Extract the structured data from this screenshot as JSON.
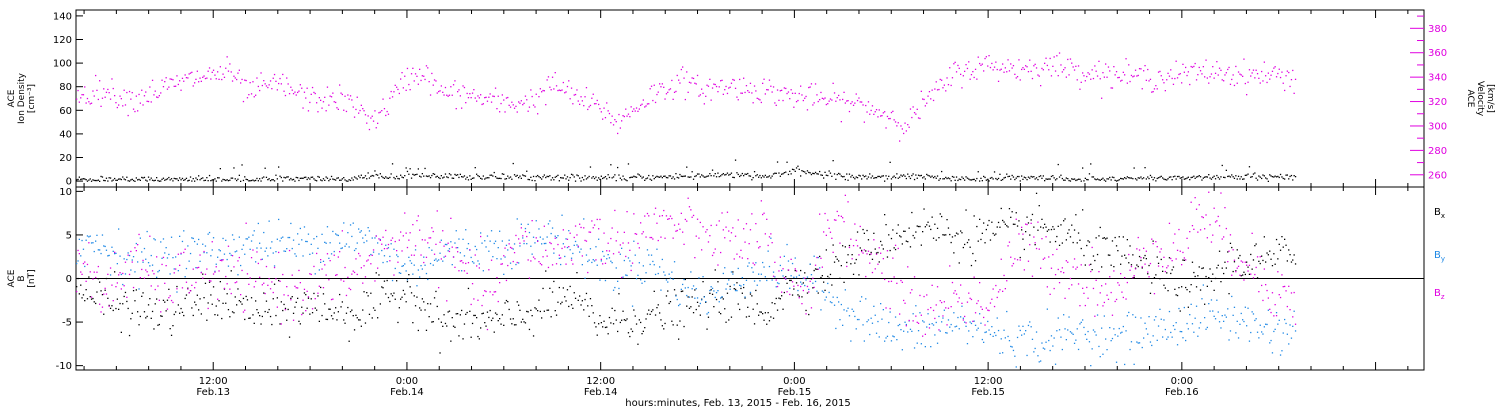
{
  "colors": {
    "density": "#000000",
    "velocity": "#e000e0",
    "bx": "#000000",
    "by": "#1e88e5",
    "bz": "#e000e0"
  },
  "time_axis": {
    "label": "hours:minutes, Feb. 13, 2015 - Feb. 16, 2015",
    "start_hours": 3.5,
    "end_hours": 87,
    "ticks": [
      {
        "hours": 12,
        "time": "12:00",
        "date": "Feb.13"
      },
      {
        "hours": 24,
        "time": "0:00",
        "date": "Feb.14"
      },
      {
        "hours": 36,
        "time": "12:00",
        "date": "Feb.14"
      },
      {
        "hours": 48,
        "time": "0:00",
        "date": "Feb.15"
      },
      {
        "hours": 60,
        "time": "12:00",
        "date": "Feb.15"
      },
      {
        "hours": 72,
        "time": "0:00",
        "date": "Feb.16"
      }
    ],
    "data_end_hours": 79
  },
  "chart_data": [
    {
      "type": "scatter",
      "panel": "top",
      "left_axis": {
        "label_lines": [
          "ACE",
          "Ion Density",
          "[cm⁻³]"
        ],
        "ylim": [
          -5,
          145
        ],
        "ticks": [
          0,
          20,
          40,
          60,
          80,
          100,
          120,
          140
        ]
      },
      "right_axis": {
        "label_lines": [
          "ACE",
          "Velocity",
          "[km/s]"
        ],
        "ylim": [
          250,
          395
        ],
        "ticks": [
          260,
          280,
          300,
          320,
          340,
          360,
          380
        ]
      },
      "series": [
        {
          "key": "density",
          "axis": "left",
          "baseline": [
            [
              3.5,
              2
            ],
            [
              10,
              1.5
            ],
            [
              20,
              2.5
            ],
            [
              24,
              6
            ],
            [
              26,
              4
            ],
            [
              32,
              4
            ],
            [
              36,
              3
            ],
            [
              40,
              4
            ],
            [
              44,
              6
            ],
            [
              46,
              4
            ],
            [
              48,
              9
            ],
            [
              50,
              6
            ],
            [
              52,
              4
            ],
            [
              56,
              5
            ],
            [
              58,
              2
            ],
            [
              62,
              3
            ],
            [
              66,
              2
            ],
            [
              70,
              3
            ],
            [
              74,
              4
            ],
            [
              79,
              4
            ]
          ],
          "spread": 3
        },
        {
          "key": "velocity",
          "axis": "right",
          "baseline": [
            [
              3.5,
              325
            ],
            [
              5,
              330
            ],
            [
              7,
              322
            ],
            [
              9,
              332
            ],
            [
              11,
              340
            ],
            [
              13,
              345
            ],
            [
              14,
              328
            ],
            [
              16,
              335
            ],
            [
              18,
              322
            ],
            [
              20,
              322
            ],
            [
              22,
              305
            ],
            [
              23,
              322
            ],
            [
              24,
              340
            ],
            [
              25,
              345
            ],
            [
              26,
              328
            ],
            [
              28,
              325
            ],
            [
              30,
              318
            ],
            [
              32,
              322
            ],
            [
              33,
              335
            ],
            [
              35,
              320
            ],
            [
              36,
              315
            ],
            [
              37,
              303
            ],
            [
              39,
              325
            ],
            [
              41,
              338
            ],
            [
              42,
              330
            ],
            [
              44,
              333
            ],
            [
              46,
              330
            ],
            [
              48,
              325
            ],
            [
              50,
              322
            ],
            [
              52,
              318
            ],
            [
              54,
              308
            ],
            [
              55,
              302
            ],
            [
              56,
              320
            ],
            [
              57,
              330
            ],
            [
              58,
              345
            ],
            [
              60,
              350
            ],
            [
              62,
              347
            ],
            [
              64,
              350
            ],
            [
              66,
              345
            ],
            [
              68,
              342
            ],
            [
              70,
              340
            ],
            [
              72,
              342
            ],
            [
              74,
              345
            ],
            [
              76,
              342
            ],
            [
              78,
              342
            ],
            [
              79,
              340
            ]
          ],
          "spread": 12
        }
      ]
    },
    {
      "type": "scatter",
      "panel": "bottom",
      "left_axis": {
        "label_lines": [
          "ACE",
          "B",
          "[nT]"
        ],
        "ylim": [
          -10.5,
          10.5
        ],
        "ticks": [
          -10,
          -5,
          0,
          5,
          10
        ]
      },
      "legend": [
        {
          "key": "bx",
          "label": "B",
          "sub": "x"
        },
        {
          "key": "by",
          "label": "B",
          "sub": "y"
        },
        {
          "key": "bz",
          "label": "B",
          "sub": "z"
        }
      ],
      "series": [
        {
          "key": "bx",
          "baseline": [
            [
              3.5,
              -1
            ],
            [
              6,
              -3
            ],
            [
              9,
              -4
            ],
            [
              12,
              -2
            ],
            [
              15,
              -4
            ],
            [
              18,
              -3
            ],
            [
              21,
              -4
            ],
            [
              24,
              -1
            ],
            [
              26,
              -5
            ],
            [
              30,
              -5
            ],
            [
              34,
              -2
            ],
            [
              36,
              -5
            ],
            [
              40,
              -4
            ],
            [
              44,
              -2
            ],
            [
              46,
              -4
            ],
            [
              48,
              0
            ],
            [
              49,
              0
            ],
            [
              50,
              1
            ],
            [
              52,
              3
            ],
            [
              54,
              5
            ],
            [
              56,
              6
            ],
            [
              58,
              5
            ],
            [
              60,
              5
            ],
            [
              63,
              6
            ],
            [
              65,
              5
            ],
            [
              67,
              3
            ],
            [
              69,
              2
            ],
            [
              71,
              0
            ],
            [
              73,
              -1
            ],
            [
              75,
              2
            ],
            [
              77,
              2
            ],
            [
              79,
              3
            ]
          ],
          "spread": 3
        },
        {
          "key": "by",
          "baseline": [
            [
              3.5,
              4
            ],
            [
              5,
              4
            ],
            [
              7,
              2
            ],
            [
              9,
              3
            ],
            [
              12,
              3
            ],
            [
              14,
              4
            ],
            [
              16,
              4
            ],
            [
              18,
              4
            ],
            [
              20,
              5
            ],
            [
              22,
              4
            ],
            [
              24,
              1
            ],
            [
              26,
              3
            ],
            [
              30,
              4
            ],
            [
              33,
              5
            ],
            [
              35,
              3
            ],
            [
              37,
              1
            ],
            [
              39,
              2
            ],
            [
              41,
              -1
            ],
            [
              43,
              -2
            ],
            [
              45,
              1
            ],
            [
              47,
              1
            ],
            [
              48,
              0.5
            ],
            [
              49,
              0
            ],
            [
              50,
              -2
            ],
            [
              52,
              -4
            ],
            [
              54,
              -6
            ],
            [
              56,
              -6
            ],
            [
              58,
              -5
            ],
            [
              60,
              -6
            ],
            [
              62,
              -7
            ],
            [
              64,
              -7
            ],
            [
              66,
              -6
            ],
            [
              68,
              -7
            ],
            [
              70,
              -6
            ],
            [
              72,
              -5
            ],
            [
              74,
              -4
            ],
            [
              76,
              -5
            ],
            [
              78,
              -6
            ],
            [
              79,
              -6
            ]
          ],
          "spread": 3
        },
        {
          "key": "bz",
          "baseline": [
            [
              3.5,
              3
            ],
            [
              5,
              -2
            ],
            [
              7,
              2
            ],
            [
              9,
              -1
            ],
            [
              11,
              1
            ],
            [
              13,
              0
            ],
            [
              15,
              0
            ],
            [
              17,
              -1
            ],
            [
              19,
              0
            ],
            [
              21,
              1
            ],
            [
              23,
              4
            ],
            [
              25,
              5
            ],
            [
              27,
              2
            ],
            [
              29,
              -2
            ],
            [
              31,
              4
            ],
            [
              33,
              3
            ],
            [
              35,
              5
            ],
            [
              37,
              4
            ],
            [
              39,
              6
            ],
            [
              41,
              6
            ],
            [
              43,
              5
            ],
            [
              45,
              4
            ],
            [
              46,
              6
            ],
            [
              47,
              -1
            ],
            [
              48,
              -1
            ],
            [
              49,
              -1
            ],
            [
              50,
              7
            ],
            [
              52,
              4
            ],
            [
              54,
              0
            ],
            [
              56,
              -4
            ],
            [
              58,
              -2
            ],
            [
              60,
              -3
            ],
            [
              62,
              4
            ],
            [
              64,
              2
            ],
            [
              66,
              0
            ],
            [
              68,
              -2
            ],
            [
              70,
              4
            ],
            [
              72,
              3
            ],
            [
              73,
              8
            ],
            [
              75,
              4
            ],
            [
              77,
              0
            ],
            [
              79,
              -3
            ]
          ],
          "spread": 4
        }
      ]
    }
  ]
}
